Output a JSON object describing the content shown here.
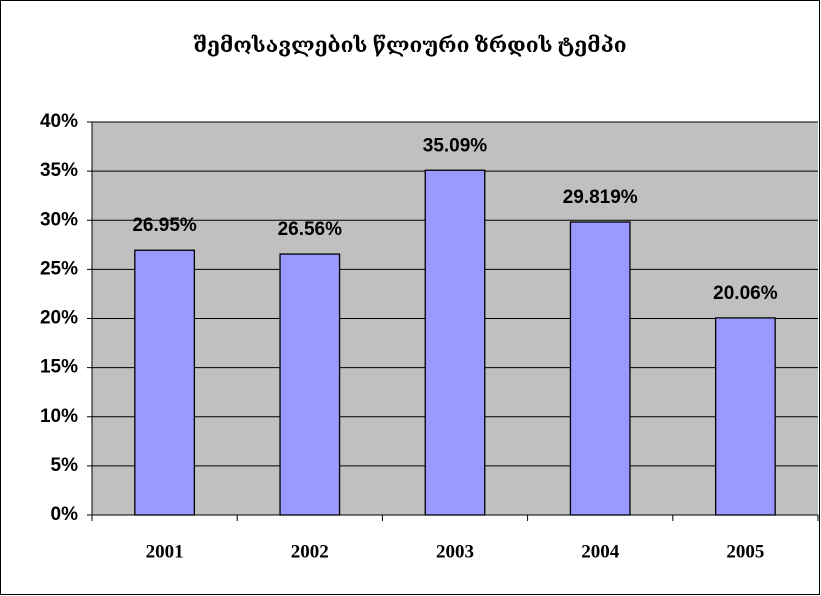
{
  "chart_data": {
    "type": "bar",
    "title": "შემოსავლების წლიური ზრდის ტემპი",
    "categories": [
      "2001",
      "2002",
      "2003",
      "2004",
      "2005"
    ],
    "values": [
      26.95,
      26.56,
      35.09,
      29.819,
      20.06
    ],
    "value_labels": [
      "26.95%",
      "26.56%",
      "35.09%",
      "29.819%",
      "20.06%"
    ],
    "color": "#9999ff",
    "ylim": [
      0,
      40
    ],
    "yticks": [
      {
        "value": 0,
        "label": "0%"
      },
      {
        "value": 5,
        "label": "5%"
      },
      {
        "value": 10,
        "label": "10%"
      },
      {
        "value": 15,
        "label": "15%"
      },
      {
        "value": 20,
        "label": "20%"
      },
      {
        "value": 25,
        "label": "25%"
      },
      {
        "value": 30,
        "label": "30%"
      },
      {
        "value": 35,
        "label": "35%"
      },
      {
        "value": 40,
        "label": "40%"
      }
    ],
    "grid": true
  }
}
